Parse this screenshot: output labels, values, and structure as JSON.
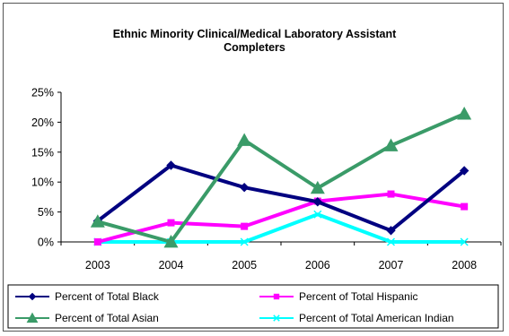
{
  "chart_data": {
    "type": "line",
    "title_line1": "Ethnic  Minority Clinical/Medical Laboratory  Assistant",
    "title_line2": "Completers",
    "categories": [
      "2003",
      "2004",
      "2005",
      "2006",
      "2007",
      "2008"
    ],
    "ylim": [
      0,
      25
    ],
    "yticks": [
      "0%",
      "5%",
      "10%",
      "15%",
      "20%",
      "25%"
    ],
    "grid": false,
    "legend_position": "bottom",
    "series": [
      {
        "name": "Percent of Total Black",
        "color": "#000080",
        "marker": "diamond",
        "values": [
          3.5,
          12.8,
          9.1,
          6.7,
          1.9,
          11.9
        ]
      },
      {
        "name": "Percent of Total Hispanic",
        "color": "#FF00FF",
        "marker": "square",
        "values": [
          0,
          3.2,
          2.6,
          6.8,
          8.0,
          5.9
        ]
      },
      {
        "name": "Percent of Total Asian",
        "color": "#3A9B68",
        "marker": "triangle",
        "values": [
          3.4,
          0,
          17.0,
          9.0,
          16.1,
          21.4
        ]
      },
      {
        "name": "Percent of Total American Indian",
        "color": "#00FFFF",
        "marker": "x",
        "values": [
          0,
          0,
          0,
          4.6,
          0,
          0
        ]
      }
    ]
  }
}
